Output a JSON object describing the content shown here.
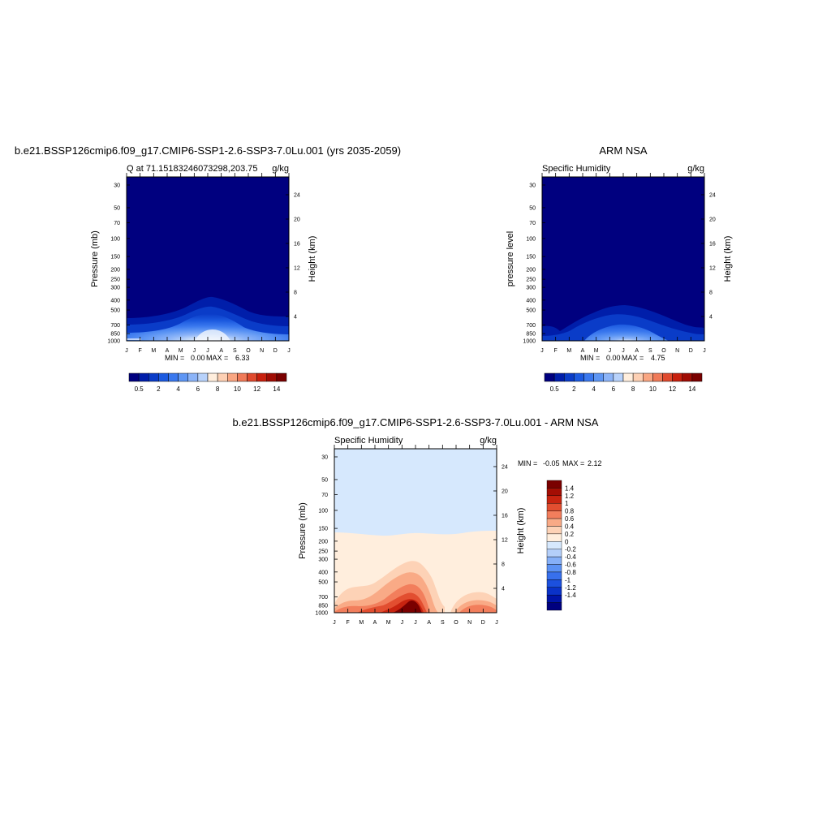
{
  "panels": [
    {
      "id": "model",
      "title": "b.e21.BSSP126cmip6.f09_g17.CMIP6-SSP1-2.6-SSP3-7.0Lu.001 (yrs 2035-2059)",
      "left_label": "Q at 71.15183246073298,203.75",
      "right_label": "g/kg",
      "ylabel": "Pressure (mb)",
      "y2label": "Height (km)",
      "minmax": {
        "min_label": "MIN =",
        "min": "0.00",
        "max_label": "MAX =",
        "max": "6.33"
      }
    },
    {
      "id": "obs",
      "title": "ARM NSA",
      "left_label": "Specific Humidity",
      "right_label": "g/kg",
      "ylabel": "pressure level",
      "y2label": "Height (km)",
      "minmax": {
        "min_label": "MIN =",
        "min": "0.00",
        "max_label": "MAX =",
        "max": "4.75"
      }
    },
    {
      "id": "diff",
      "title": "b.e21.BSSP126cmip6.f09_g17.CMIP6-SSP1-2.6-SSP3-7.0Lu.001 - ARM NSA",
      "left_label": "Specific Humidity",
      "right_label": "g/kg",
      "ylabel": "Pressure (mb)",
      "y2label": "Height (km)",
      "minmax": {
        "min_label": "MIN =",
        "min": "-0.05",
        "max_label": "MAX =",
        "max": "2.12"
      }
    }
  ],
  "colors": {
    "humidity_scale": [
      "#00007f",
      "#001eaa",
      "#0a3cc8",
      "#1c5ae0",
      "#3a78ee",
      "#5e96f4",
      "#8cb4f8",
      "#b8d2fb",
      "#ffeedd",
      "#fdd0b4",
      "#f9a682",
      "#f07a58",
      "#e04a2e",
      "#c8200e",
      "#a00c04",
      "#7a0000"
    ],
    "diff_scale": [
      "#00007f",
      "#0014a8",
      "#0a32c8",
      "#1c50de",
      "#3870ec",
      "#5c92f4",
      "#86b0f8",
      "#b4cffa",
      "#d6e8fd",
      "#ffeedd",
      "#fdd2b6",
      "#f9aa86",
      "#f27e5c",
      "#e24e30",
      "#c82410",
      "#a40e04",
      "#7a0000"
    ]
  },
  "chart_data": [
    {
      "type": "heatmap",
      "title": "b.e21.BSSP126cmip6.f09_g17.CMIP6-SSP1-2.6-SSP3-7.0Lu.001 (yrs 2035-2059)",
      "variable": "Q at 71.15183246073298,203.75",
      "units": "g/kg",
      "x_ticks": [
        "J",
        "F",
        "M",
        "A",
        "M",
        "J",
        "J",
        "A",
        "S",
        "O",
        "N",
        "D",
        "J"
      ],
      "y_ticks": [
        30,
        50,
        70,
        100,
        150,
        200,
        250,
        300,
        400,
        500,
        700,
        850,
        1000
      ],
      "y_scale": "log-pressure",
      "ylim": [
        1000,
        25
      ],
      "y2_ticks": [
        4,
        8,
        12,
        16,
        20,
        24
      ],
      "months": [
        0,
        1,
        2,
        3,
        4,
        5,
        6,
        7,
        8,
        9,
        10,
        11,
        12
      ],
      "top_pressure_of_moisture": [
        620,
        640,
        620,
        560,
        470,
        400,
        370,
        400,
        470,
        560,
        630,
        640,
        620
      ],
      "max": 6.33,
      "min": 0.0,
      "colorbar_labels": [
        "0.5",
        "2",
        "4",
        "6",
        "8",
        "10",
        "12",
        "14"
      ]
    },
    {
      "type": "heatmap",
      "title": "ARM NSA",
      "variable": "Specific Humidity",
      "units": "g/kg",
      "x_ticks": [
        "J",
        "F",
        "M",
        "A",
        "M",
        "J",
        "J",
        "A",
        "S",
        "O",
        "N",
        "D",
        "J"
      ],
      "y_ticks": [
        30,
        50,
        70,
        100,
        150,
        200,
        250,
        300,
        400,
        500,
        700,
        850,
        1000
      ],
      "y_scale": "log-pressure",
      "ylim": [
        1000,
        25
      ],
      "y2_ticks": [
        4,
        8,
        12,
        16,
        20,
        24
      ],
      "months": [
        0,
        1,
        2,
        3,
        4,
        5,
        6,
        7,
        8,
        9,
        10,
        11,
        12
      ],
      "top_pressure_of_moisture": [
        720,
        760,
        860,
        640,
        520,
        460,
        430,
        450,
        500,
        580,
        670,
        720,
        760
      ],
      "max": 4.75,
      "min": 0.0,
      "colorbar_labels": [
        "0.5",
        "2",
        "4",
        "6",
        "8",
        "10",
        "12",
        "14"
      ]
    },
    {
      "type": "heatmap",
      "title": "b.e21.BSSP126cmip6.f09_g17.CMIP6-SSP1-2.6-SSP3-7.0Lu.001 - ARM NSA",
      "variable": "Specific Humidity",
      "units": "g/kg",
      "x_ticks": [
        "J",
        "F",
        "M",
        "A",
        "M",
        "J",
        "J",
        "A",
        "S",
        "O",
        "N",
        "D",
        "J"
      ],
      "y_ticks": [
        30,
        50,
        70,
        100,
        150,
        200,
        250,
        300,
        400,
        500,
        700,
        850,
        1000
      ],
      "y_scale": "log-pressure",
      "ylim": [
        1000,
        25
      ],
      "y2_ticks": [
        4,
        8,
        12,
        16,
        20,
        24
      ],
      "zero_contour_pressure": [
        150,
        155,
        165,
        175,
        160,
        150,
        150,
        160,
        155,
        150,
        155,
        150,
        150
      ],
      "max": 2.12,
      "min": -0.05,
      "colorbar_labels": [
        "1.4",
        "1.2",
        "1",
        "0.8",
        "0.6",
        "0.4",
        "0.2",
        "0",
        "-0.2",
        "-0.4",
        "-0.6",
        "-0.8",
        "-1",
        "-1.2",
        "-1.4"
      ]
    }
  ]
}
